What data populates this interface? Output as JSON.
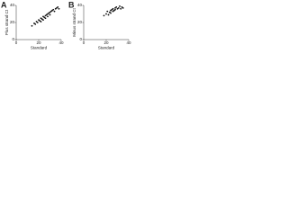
{
  "chart_data": [
    {
      "type": "scatter",
      "label": "A",
      "xlabel": "Standard",
      "ylabel": "Plus strand Ct",
      "color": "#111111",
      "x": [
        14,
        16,
        17,
        18,
        19,
        20,
        21,
        22,
        22,
        23,
        24,
        24,
        25,
        26,
        26,
        27,
        28,
        28,
        29,
        30,
        30,
        31,
        32,
        33,
        34,
        35,
        36,
        37,
        38
      ],
      "values": [
        16,
        19,
        18,
        21,
        20,
        23,
        22,
        25,
        21,
        24,
        27,
        23,
        26,
        28,
        25,
        29,
        30,
        27,
        31,
        32,
        29,
        33,
        34,
        35,
        33,
        36,
        37,
        38,
        36
      ],
      "xlim": [
        0,
        40
      ],
      "ylim": [
        0,
        40
      ],
      "xticks": [
        0,
        20,
        40
      ],
      "yticks": [
        0,
        20,
        40
      ]
    },
    {
      "type": "scatter",
      "label": "B",
      "xlabel": "Standard",
      "ylabel": "Minus strand Ct",
      "color": "#111111",
      "x": [
        18,
        20,
        21,
        22,
        23,
        24,
        24,
        25,
        26,
        26,
        27,
        28,
        28,
        29,
        30,
        31,
        32,
        33,
        34,
        35
      ],
      "values": [
        28,
        30,
        33,
        29,
        32,
        34,
        31,
        35,
        33,
        36,
        34,
        37,
        35,
        38,
        36,
        37,
        39,
        36,
        38,
        37
      ],
      "xlim": [
        0,
        40
      ],
      "ylim": [
        0,
        40
      ],
      "xticks": [
        0,
        20,
        40
      ],
      "yticks": [
        0,
        20,
        40
      ]
    }
  ]
}
